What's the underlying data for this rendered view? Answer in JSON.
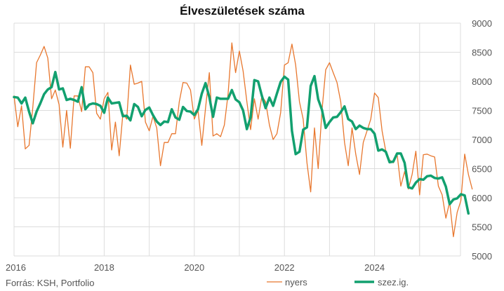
{
  "chart_data": {
    "type": "line",
    "title": "Élveszületések száma",
    "source": "Forrás: KSH, Portfolio",
    "xlabel": "",
    "ylabel": "",
    "ylim": [
      5000,
      9000
    ],
    "yticks": [
      5000,
      5500,
      6000,
      6500,
      7000,
      7500,
      8000,
      8500,
      9000
    ],
    "xlim": [
      2016,
      2025.83
    ],
    "xticks": [
      2016,
      2018,
      2020,
      2022,
      2024
    ],
    "grid": true,
    "legend_position": "bottom-right",
    "x_start": 2016,
    "x_step_years": 0.0833333,
    "series": [
      {
        "name": "nyers",
        "color": "#e8772e",
        "stroke_width": 1.3,
        "values": [
          7750,
          7220,
          7580,
          6840,
          6900,
          7550,
          8320,
          8450,
          8600,
          8400,
          7700,
          7850,
          7600,
          6870,
          7500,
          6850,
          7750,
          7750,
          7480,
          8250,
          8250,
          8150,
          7450,
          7350,
          7700,
          7810,
          6820,
          7300,
          6720,
          7450,
          7350,
          8280,
          7950,
          7970,
          8000,
          7300,
          7150,
          7400,
          7200,
          6550,
          6950,
          6950,
          7100,
          7100,
          7650,
          7980,
          7970,
          7850,
          7350,
          7500,
          6900,
          7540,
          8150,
          7060,
          7100,
          7050,
          7250,
          7780,
          8660,
          8150,
          8520,
          8180,
          7650,
          7170,
          7700,
          7350,
          7750,
          7650,
          7250,
          7000,
          7100,
          7460,
          8280,
          8320,
          8640,
          8280,
          7650,
          7350,
          6600,
          6100,
          7200,
          6500,
          7500,
          8200,
          8320,
          8150,
          7980,
          7650,
          6950,
          6550,
          7200,
          6750,
          6400,
          6950,
          7150,
          7350,
          7800,
          7720,
          7150,
          6800,
          6650,
          6600,
          6750,
          6200,
          6450,
          6150,
          6400,
          6800,
          6050,
          6740,
          6750,
          6720,
          6700,
          6200,
          6050,
          5650,
          5930,
          5330,
          5750,
          5950,
          6750,
          6400,
          6150
        ],
        "pattern_note": ""
      },
      {
        "name": "szez.ig.",
        "color": "#12a06f",
        "stroke_width": 3.5,
        "values": [
          7730,
          7720,
          7620,
          7720,
          7480,
          7280,
          7480,
          7620,
          7780,
          7860,
          7900,
          8160,
          7860,
          7880,
          7680,
          7700,
          7680,
          7650,
          7900,
          7520,
          7600,
          7620,
          7610,
          7580,
          7460,
          7720,
          7620,
          7630,
          7640,
          7400,
          7410,
          7330,
          7610,
          7560,
          7400,
          7510,
          7550,
          7420,
          7310,
          7250,
          7310,
          7300,
          7520,
          7380,
          7340,
          7560,
          7490,
          7480,
          7420,
          7520,
          7790,
          7970,
          7730,
          7390,
          7720,
          7700,
          7700,
          7700,
          7850,
          7690,
          7640,
          7500,
          7180,
          7380,
          8020,
          8000,
          7750,
          7540,
          7720,
          7580,
          7790,
          7990,
          8080,
          8030,
          7150,
          6750,
          6790,
          7170,
          7210,
          7920,
          8090,
          7690,
          7510,
          7200,
          7300,
          7380,
          7390,
          7470,
          7570,
          7350,
          7310,
          7180,
          7240,
          7200,
          7180,
          7180,
          7100,
          6810,
          6830,
          6790,
          6610,
          6620,
          6760,
          6760,
          6600,
          6180,
          6160,
          6260,
          6320,
          6310,
          6370,
          6380,
          6340,
          6330,
          6350,
          6190,
          5890,
          5970,
          5990,
          6060,
          6040,
          5730
        ],
        "pattern_note": ""
      }
    ]
  }
}
